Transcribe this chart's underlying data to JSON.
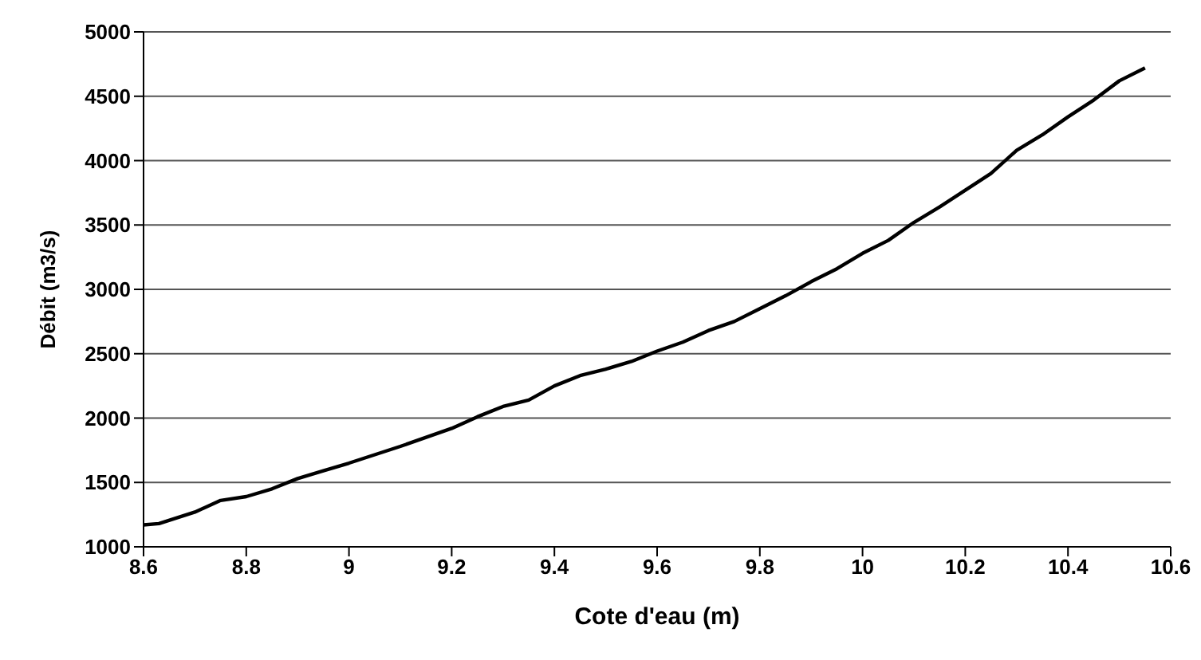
{
  "chart_data": {
    "type": "line",
    "xlabel": "Cote d'eau (m)",
    "ylabel": "Débit (m3/s)",
    "x": [
      8.6,
      8.63,
      8.7,
      8.75,
      8.8,
      8.85,
      8.9,
      8.95,
      9.0,
      9.1,
      9.2,
      9.25,
      9.3,
      9.35,
      9.4,
      9.45,
      9.5,
      9.55,
      9.6,
      9.65,
      9.7,
      9.75,
      9.8,
      9.85,
      9.9,
      9.95,
      10.0,
      10.05,
      10.1,
      10.15,
      10.2,
      10.25,
      10.3,
      10.35,
      10.4,
      10.45,
      10.5,
      10.55
    ],
    "series": [
      {
        "color": "#000000",
        "values": [
          1170,
          1180,
          1270,
          1360,
          1390,
          1450,
          1530,
          1590,
          1650,
          1780,
          1920,
          2010,
          2090,
          2140,
          2250,
          2330,
          2380,
          2440,
          2520,
          2590,
          2680,
          2750,
          2850,
          2950,
          3060,
          3160,
          3280,
          3380,
          3520,
          3640,
          3770,
          3900,
          4080,
          4200,
          4340,
          4470,
          4620,
          4720
        ]
      }
    ],
    "xlim": [
      8.6,
      10.6
    ],
    "xticks": [
      8.6,
      8.8,
      9,
      9.2,
      9.4,
      9.6,
      9.8,
      10,
      10.2,
      10.4,
      10.6
    ],
    "ylim": [
      1000,
      5000
    ],
    "yticks": [
      1000,
      1500,
      2000,
      2500,
      3000,
      3500,
      4000,
      4500,
      5000
    ],
    "grid": "y",
    "marker": "none",
    "line_style": "solid",
    "legend": false
  }
}
